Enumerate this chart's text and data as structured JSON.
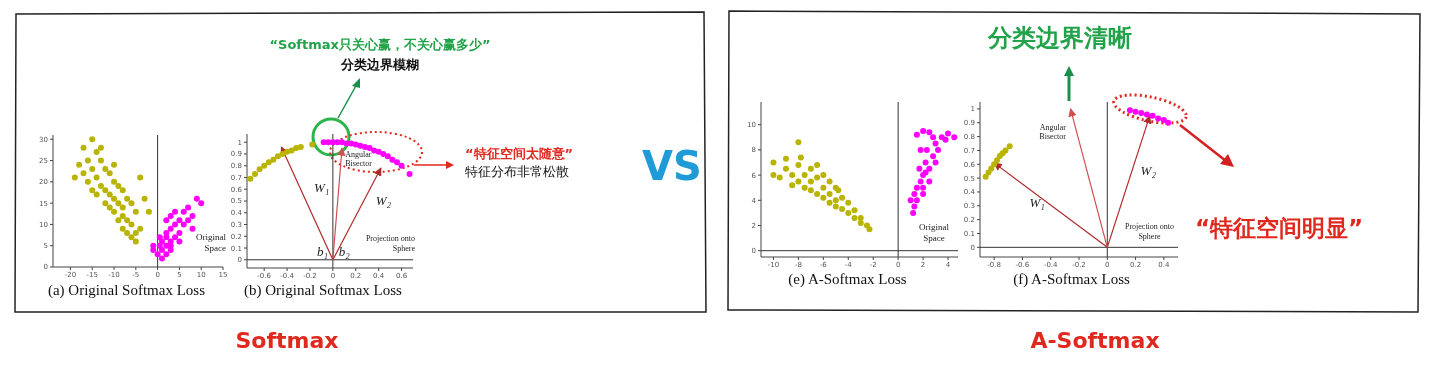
{
  "chart_data": [
    {
      "type": "scatter",
      "title": "(a) Original Softmax Loss",
      "marker": "circle",
      "xlim": [
        -24,
        15
      ],
      "ylim": [
        0,
        31
      ],
      "xticks": [
        -20,
        -15,
        -10,
        -5,
        0,
        5,
        10,
        15
      ],
      "yticks": [
        0,
        5,
        10,
        15,
        20,
        25,
        30
      ],
      "ref_lines": [
        {
          "axis": "x",
          "value": 0,
          "color": "#333333"
        }
      ],
      "annotations": [
        "Original Space",
        "Softmax"
      ],
      "series": [
        {
          "color": "#b8b400",
          "x": [
            -17,
            -15,
            -14,
            -16,
            -13,
            -15,
            -18,
            -12,
            -14,
            -11,
            -13,
            -16,
            -10,
            -12,
            -9,
            -11,
            -14,
            -8,
            -10,
            -12,
            -9,
            -7,
            -11,
            -8,
            -10,
            -6,
            -8,
            -7,
            -9,
            -5,
            -6,
            -8,
            -5,
            -7,
            -4,
            -5,
            -6,
            -19,
            -17,
            -13,
            -10,
            -4,
            -2,
            -3,
            -15
          ],
          "values": [
            28,
            30,
            27,
            25,
            25,
            23,
            24,
            23,
            21,
            22,
            19,
            20,
            20,
            18,
            19,
            17,
            17,
            18,
            16,
            15,
            15,
            16,
            14,
            14,
            13,
            15,
            12,
            11,
            11,
            13,
            10,
            9,
            8,
            8,
            9,
            6,
            7,
            21,
            22,
            28,
            24,
            21,
            13,
            16,
            18
          ]
        },
        {
          "color": "#ff00ff",
          "x": [
            0,
            1,
            0.5,
            2,
            1,
            3,
            2,
            3,
            4,
            2,
            3,
            5,
            4,
            5,
            3,
            6,
            7,
            8,
            6,
            9,
            10,
            8,
            -1,
            0.5,
            2,
            4,
            3,
            1,
            2,
            5,
            7,
            -1
          ],
          "values": [
            3,
            4,
            5,
            5,
            6,
            6,
            7,
            4,
            7,
            8,
            9,
            8,
            10,
            11,
            12,
            10,
            11,
            12,
            13,
            16,
            15,
            9,
            4,
            7,
            11,
            13,
            5,
            2,
            3,
            6,
            14,
            5
          ]
        }
      ]
    },
    {
      "type": "scatter",
      "title": "(b) Original Softmax Loss",
      "marker": "circle",
      "xlim": [
        -0.75,
        0.7
      ],
      "ylim": [
        -0.07,
        1.07
      ],
      "xticks": [
        -0.6,
        -0.4,
        -0.2,
        0,
        0.2,
        0.4,
        0.6
      ],
      "yticks": [
        0,
        0.1,
        0.2,
        0.3,
        0.4,
        0.5,
        0.6,
        0.7,
        0.8,
        0.9,
        1
      ],
      "ref_lines": [
        {
          "axis": "x",
          "value": 0,
          "color": "#333333"
        },
        {
          "axis": "y",
          "value": 0,
          "color": "#333333"
        }
      ],
      "annotations": [
        {
          "text": "b₁",
          "x": -0.09,
          "y": 0.03
        },
        {
          "text": "b₂",
          "x": 0.1,
          "y": 0.03
        },
        "Projection onto Sphere",
        "“Softmax只关心赢，不关心赢多少”",
        "分类边界模糊",
        "“特征空间太随意”",
        "特征分布非常松散",
        "VS"
      ],
      "series": [
        {
          "color": "#b8b400",
          "x": [
            -0.72,
            -0.68,
            -0.64,
            -0.6,
            -0.56,
            -0.52,
            -0.48,
            -0.44,
            -0.4,
            -0.36,
            -0.32,
            -0.28,
            -0.18
          ],
          "values": [
            0.69,
            0.73,
            0.77,
            0.8,
            0.83,
            0.85,
            0.88,
            0.9,
            0.92,
            0.93,
            0.95,
            0.96,
            0.98
          ]
        },
        {
          "color": "#ff00ff",
          "x": [
            -0.08,
            -0.04,
            0,
            0.04,
            0.08,
            0.12,
            0.16,
            0.2,
            0.24,
            0.28,
            0.32,
            0.36,
            0.4,
            0.44,
            0.48,
            0.52,
            0.56,
            0.6,
            0.67
          ],
          "values": [
            1,
            1,
            1,
            1,
            1,
            0.99,
            0.99,
            0.98,
            0.97,
            0.96,
            0.95,
            0.93,
            0.92,
            0.9,
            0.88,
            0.85,
            0.83,
            0.8,
            0.73
          ]
        },
        {
          "type": "line",
          "marker": "none",
          "name": "W₁",
          "color": "#b02a2a",
          "x": [
            0,
            -0.45
          ],
          "values": [
            0,
            0.96
          ]
        },
        {
          "type": "line",
          "marker": "none",
          "name": "W₂",
          "color": "#b02a2a",
          "x": [
            0,
            0.42
          ],
          "values": [
            0,
            0.78
          ]
        },
        {
          "type": "line",
          "marker": "none",
          "name": "Angular Bisector",
          "color": "#d05050",
          "x": [
            0,
            0.08
          ],
          "values": [
            0,
            0.95
          ]
        }
      ]
    },
    {
      "type": "scatter",
      "title": "(e) A-Softmax Loss",
      "marker": "circle",
      "xlim": [
        -11,
        4.8
      ],
      "ylim": [
        -0.5,
        11.8
      ],
      "xticks": [
        -10,
        -8,
        -6,
        -4,
        -2,
        0,
        2,
        4
      ],
      "yticks": [
        0,
        2,
        4,
        6,
        8,
        10
      ],
      "ref_lines": [
        {
          "axis": "x",
          "value": 0,
          "color": "#333333"
        },
        {
          "axis": "y",
          "value": 0,
          "color": "#333333"
        }
      ],
      "annotations": [
        "Original Space",
        "A-Softmax"
      ],
      "series": [
        {
          "color": "#b8b400",
          "x": [
            -10,
            -10,
            -9.5,
            -9,
            -9,
            -8.5,
            -8.5,
            -8,
            -8,
            -8,
            -7.5,
            -7.5,
            -7,
            -7,
            -7,
            -6.5,
            -6.5,
            -6,
            -6,
            -6,
            -5.5,
            -5.5,
            -5.5,
            -5,
            -5,
            -5,
            -4.5,
            -4.5,
            -4,
            -4,
            -3.5,
            -3.5,
            -3,
            -3,
            -2.5,
            -2.3,
            -6.5,
            -7.8,
            -4.8
          ],
          "values": [
            7,
            6,
            5.8,
            6.5,
            7.3,
            6,
            5.2,
            8.6,
            6.8,
            5.5,
            6,
            5,
            6.5,
            5.5,
            4.8,
            5.8,
            4.5,
            6,
            5,
            4.2,
            5.5,
            4.5,
            3.8,
            5,
            4,
            3.5,
            4.2,
            3.3,
            3.8,
            3,
            3.2,
            2.6,
            2.6,
            2.2,
            2,
            1.7,
            6.8,
            7.4,
            4.8
          ]
        },
        {
          "color": "#ff00ff",
          "x": [
            1.2,
            1,
            1.3,
            1.5,
            1.5,
            1.8,
            2,
            2,
            1.7,
            2.2,
            2.5,
            2.3,
            2.8,
            3,
            3.2,
            3.5,
            4,
            4.5,
            2,
            1.5,
            2.5,
            1.8,
            3,
            2.5,
            2,
            1.3,
            2.8,
            3.8,
            2.2
          ],
          "values": [
            3,
            4,
            4.5,
            4,
            5,
            5.5,
            6,
            5,
            6.5,
            7,
            6.5,
            8,
            7.5,
            8.5,
            8,
            9,
            9.3,
            9,
            9.5,
            9.2,
            9.4,
            8,
            7,
            5.5,
            4.5,
            3.5,
            9,
            8.8,
            6.2
          ]
        }
      ]
    },
    {
      "type": "scatter",
      "title": "(f) A-Softmax Loss",
      "marker": "circle",
      "xlim": [
        -0.9,
        0.5
      ],
      "ylim": [
        -0.07,
        1.05
      ],
      "xticks": [
        -0.8,
        -0.6,
        -0.4,
        -0.2,
        0,
        0.2,
        0.4
      ],
      "yticks": [
        0,
        0.1,
        0.2,
        0.3,
        0.4,
        0.5,
        0.6,
        0.7,
        0.8,
        0.9,
        1
      ],
      "ref_lines": [
        {
          "axis": "x",
          "value": 0,
          "color": "#333333"
        },
        {
          "axis": "y",
          "value": 0,
          "color": "#333333"
        }
      ],
      "annotations": [
        "Projection onto Sphere",
        "分类边界清晰",
        "“特征空间明显”"
      ],
      "series": [
        {
          "color": "#b8b400",
          "x": [
            -0.86,
            -0.84,
            -0.82,
            -0.8,
            -0.78,
            -0.76,
            -0.74,
            -0.72,
            -0.69
          ],
          "values": [
            0.51,
            0.54,
            0.57,
            0.6,
            0.63,
            0.66,
            0.68,
            0.7,
            0.73
          ]
        },
        {
          "color": "#ff00ff",
          "x": [
            0.16,
            0.2,
            0.24,
            0.28,
            0.32,
            0.36,
            0.4,
            0.43
          ],
          "values": [
            0.99,
            0.98,
            0.97,
            0.96,
            0.95,
            0.93,
            0.92,
            0.9
          ]
        },
        {
          "type": "line",
          "marker": "none",
          "name": "W₁",
          "color": "#b02a2a",
          "x": [
            0,
            -0.8
          ],
          "values": [
            0,
            0.61
          ]
        },
        {
          "type": "line",
          "marker": "none",
          "name": "W₂",
          "color": "#b02a2a",
          "x": [
            0,
            0.3
          ],
          "values": [
            0,
            0.95
          ]
        },
        {
          "type": "line",
          "marker": "none",
          "name": "Angular Bisector",
          "color": "#d05050",
          "x": [
            0,
            -0.26
          ],
          "values": [
            0,
            1
          ]
        }
      ]
    }
  ]
}
